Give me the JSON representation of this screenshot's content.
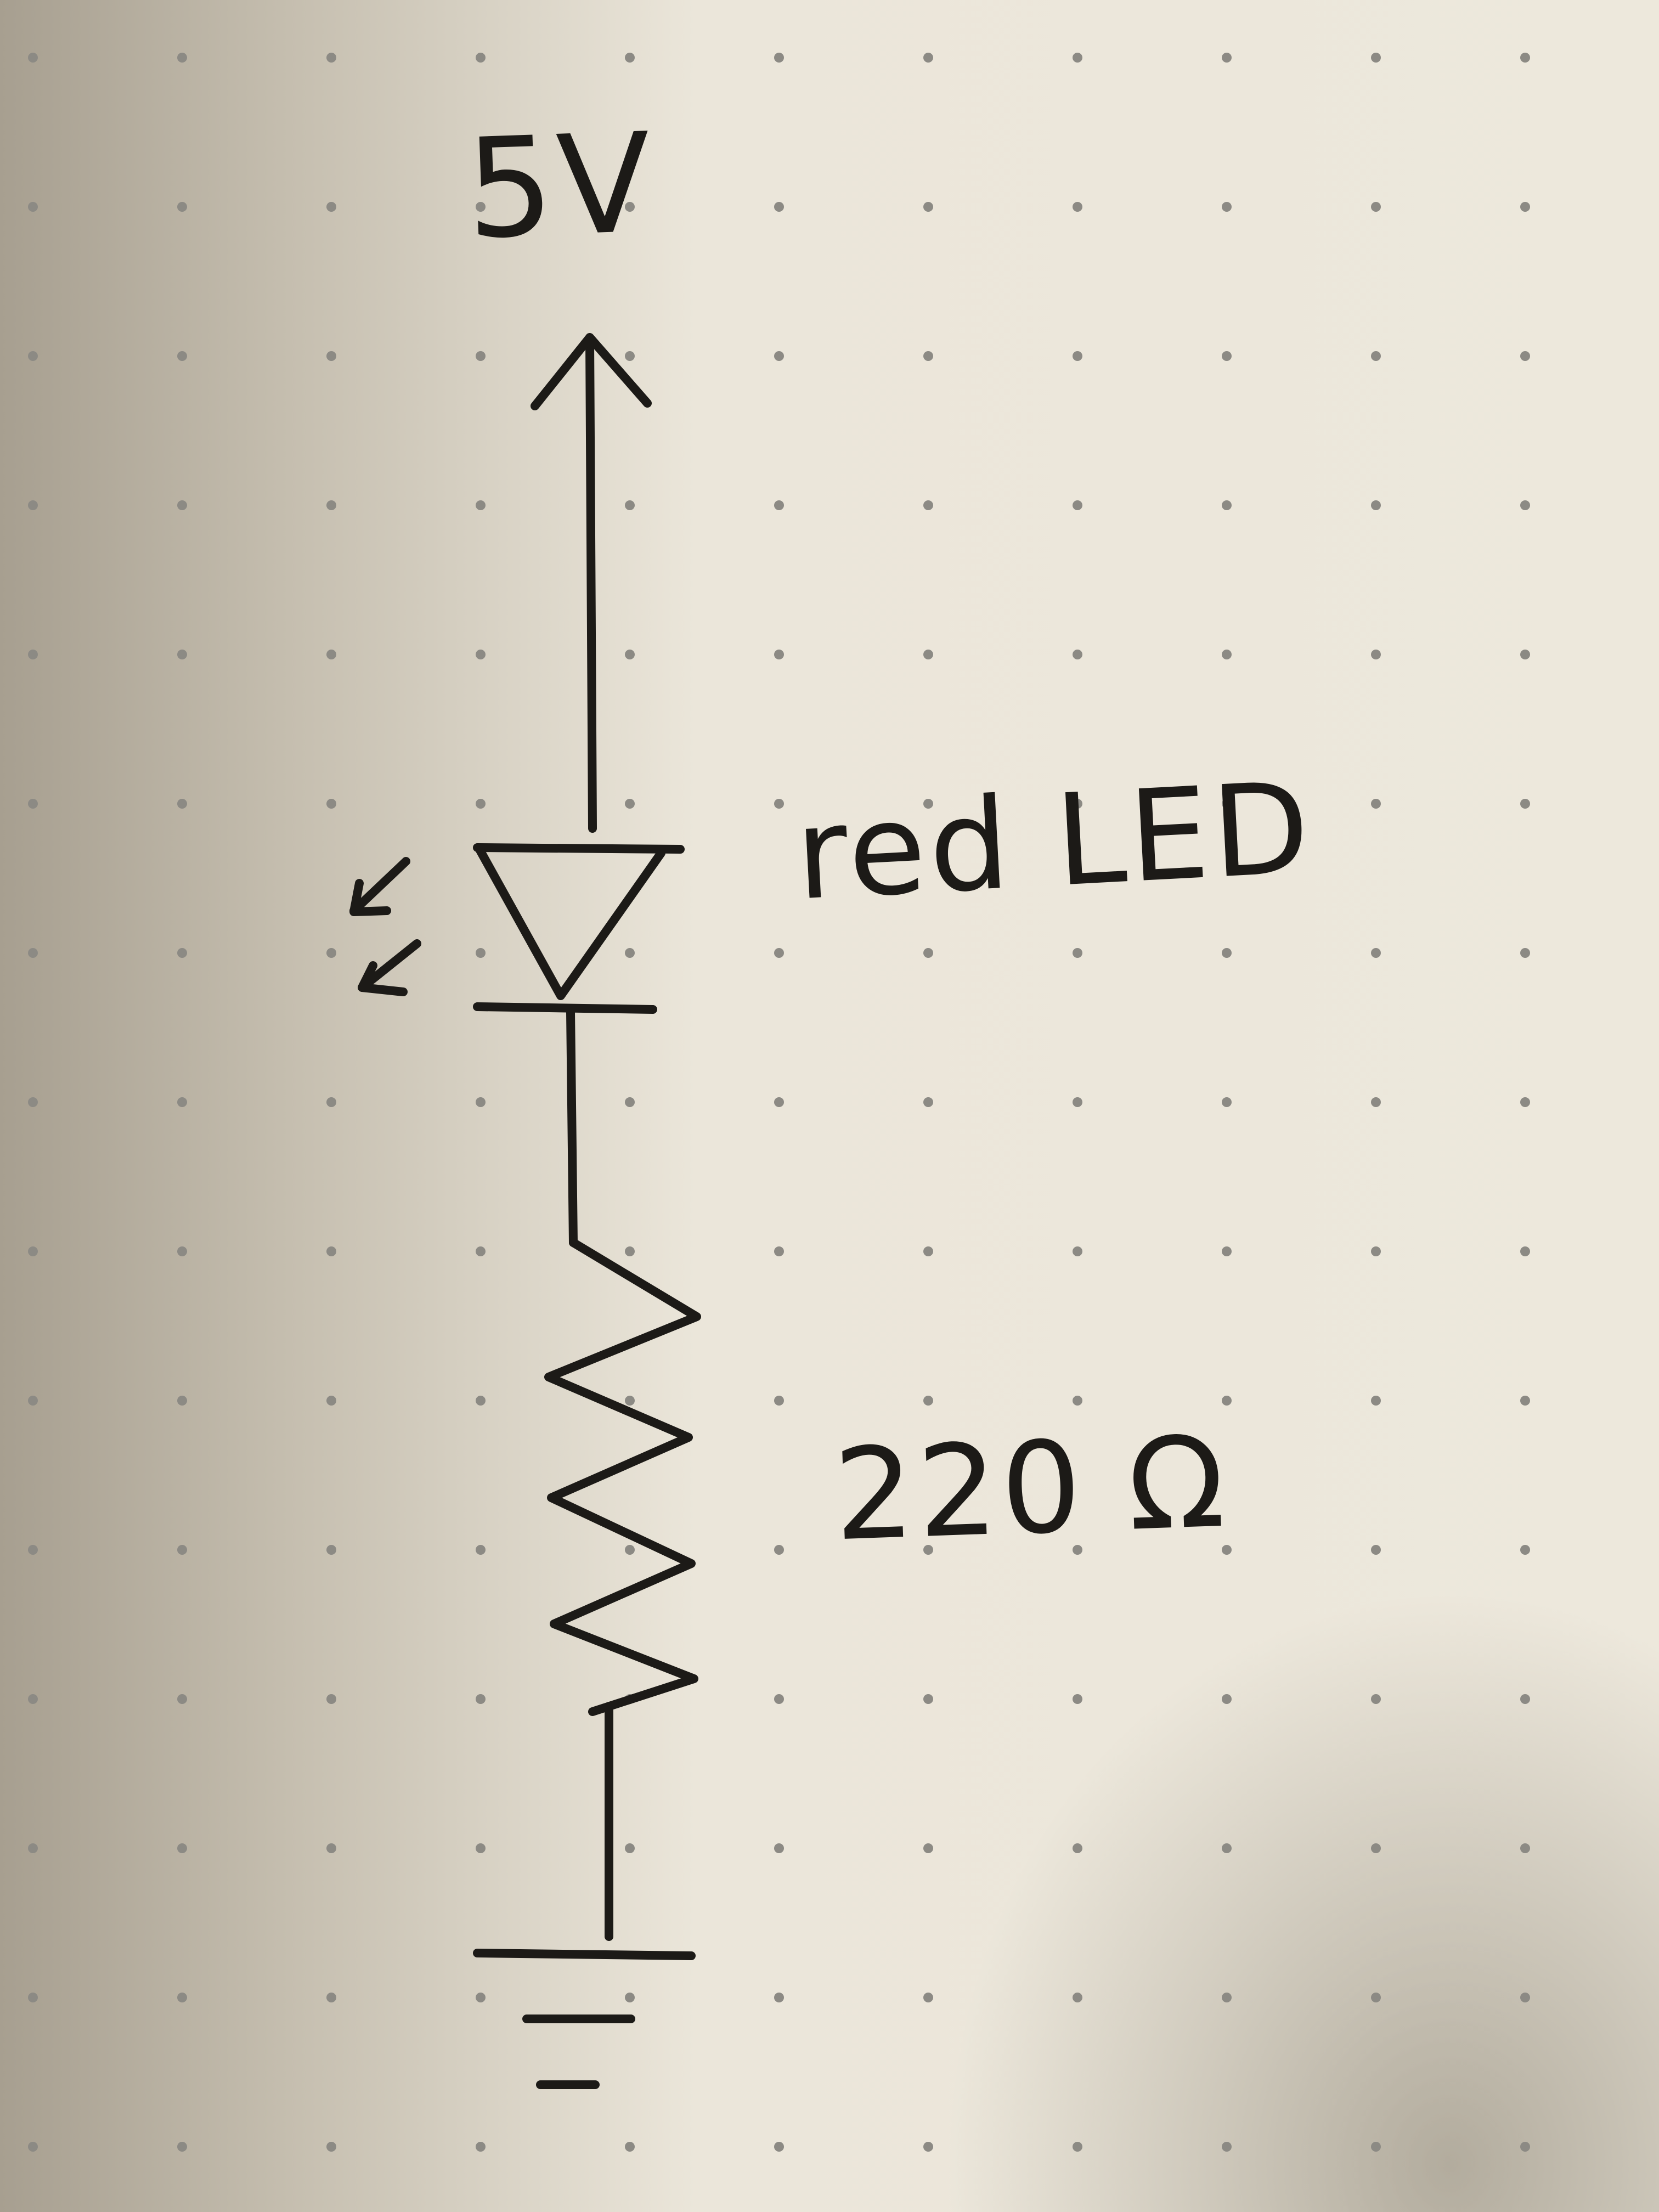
{
  "diagram": {
    "type": "hand-drawn circuit schematic",
    "supply_label": "5V",
    "led_label": "red LED",
    "resistor_label": "220 Ω",
    "components": [
      "supply-arrow",
      "led",
      "resistor",
      "ground"
    ],
    "ink_color": "#1c1a17",
    "paper_color": "#ebe6da",
    "dot_color": "#8c8a84",
    "shadow_color": "#a9a294"
  }
}
